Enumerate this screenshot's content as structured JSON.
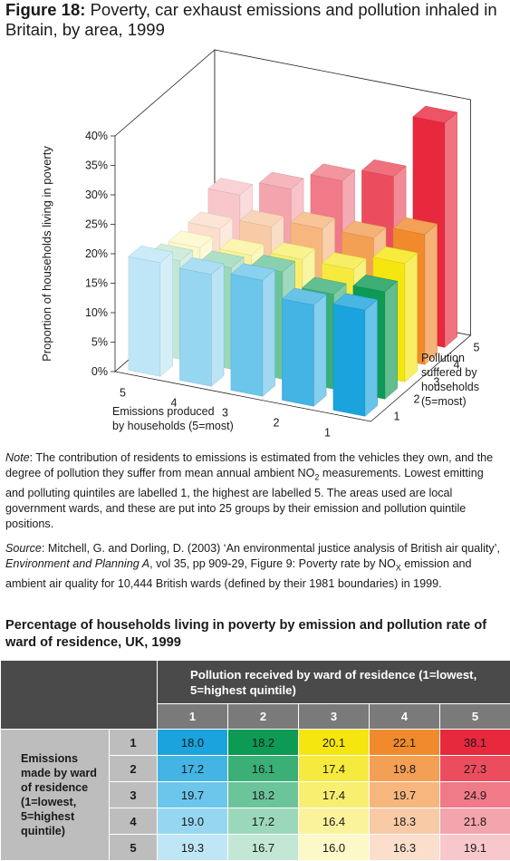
{
  "figure": {
    "label": "Figure 18:",
    "title": "Poverty, car exhaust emissions and pollution inhaled in Britain, by area, 1999"
  },
  "chart_data": {
    "type": "bar",
    "title": "Poverty, car exhaust emissions and pollution inhaled in Britain, by area, 1999",
    "ylabel": "Proportion of households living in poverty",
    "xlabel": "Emissions produced by households (5=most)",
    "zlabel": "Pollution suffered by households (5=most)",
    "ylim": [
      0,
      40
    ],
    "yticks": [
      "0%",
      "5%",
      "10%",
      "15%",
      "20%",
      "25%",
      "30%",
      "35%",
      "40%"
    ],
    "emission_categories": [
      "5",
      "4",
      "3",
      "2",
      "1"
    ],
    "pollution_categories": [
      "1",
      "2",
      "3",
      "4",
      "5"
    ],
    "xlabel_lines": [
      "Emissions produced",
      "by households (5=most)"
    ],
    "zlabel_lines": [
      "Pollution",
      "suffered by",
      "households",
      "(5=most)"
    ],
    "series": [
      {
        "emission": "1",
        "values": [
          18.0,
          18.2,
          20.1,
          22.1,
          38.1
        ]
      },
      {
        "emission": "2",
        "values": [
          17.2,
          16.1,
          17.4,
          19.8,
          27.3
        ]
      },
      {
        "emission": "3",
        "values": [
          19.7,
          18.2,
          17.4,
          19.7,
          24.9
        ]
      },
      {
        "emission": "4",
        "values": [
          19.0,
          17.2,
          16.4,
          18.3,
          21.8
        ]
      },
      {
        "emission": "5",
        "values": [
          19.3,
          16.7,
          16.0,
          16.3,
          19.1
        ]
      }
    ],
    "colors": {
      "1": [
        "#1aa3dd",
        "#0d9a54",
        "#f5e60f",
        "#f08a2c",
        "#e8283d"
      ],
      "2": [
        "#43b4e3",
        "#3aaf76",
        "#f6ea3e",
        "#f39f54",
        "#ec4d5e"
      ],
      "3": [
        "#6cc5ea",
        "#6cc49a",
        "#f8ef70",
        "#f6b67e",
        "#f07a87"
      ],
      "4": [
        "#96d6f0",
        "#9ad8b9",
        "#faf39c",
        "#f8cba6",
        "#f4a4ad"
      ],
      "5": [
        "#bfe6f6",
        "#c3e7d5",
        "#fcf8c7",
        "#fbdfcc",
        "#f8c7cc"
      ]
    }
  },
  "note": {
    "label": "Note",
    "text": ": The contribution of residents to emissions is estimated from the vehicles they own, and the degree of pollution they suffer from mean annual ambient NO",
    "sub": "2",
    "text2": " measurements. Lowest emitting and polluting quintiles are labelled 1, the highest are labelled 5. The areas used are local government wards, and these are put into 25 groups by their emission and pollution quintile positions."
  },
  "source": {
    "label": "Source",
    "p1": ": Mitchell, G. and Dorling, D. (2003) ‘An environmental justice analysis of British air quality’, ",
    "journal": "Environment and Planning A",
    "p2": ", vol 35, pp 909-29, Figure 9: Poverty rate by NO",
    "sub": "X",
    "p3": " emission and ambient air quality for 10,444 British wards (defined by their 1981 boundaries) in 1999."
  },
  "table": {
    "title": "Percentage of households living in poverty by emission and pollution rate of ward of residence, UK, 1999",
    "col_header_line1": "Pollution received by ward of residence (1=lowest,",
    "col_header_line2": "5=highest quintile)",
    "row_header": [
      "Emissions",
      "made by ward",
      "of residence",
      "(1=lowest,",
      "5=highest",
      "quintile)"
    ],
    "columns": [
      "1",
      "2",
      "3",
      "4",
      "5"
    ],
    "rows": [
      {
        "label": "1",
        "values": [
          "18.0",
          "18.2",
          "20.1",
          "22.1",
          "38.1"
        ]
      },
      {
        "label": "2",
        "values": [
          "17.2",
          "16.1",
          "17.4",
          "19.8",
          "27.3"
        ]
      },
      {
        "label": "3",
        "values": [
          "19.7",
          "18.2",
          "17.4",
          "19.7",
          "24.9"
        ]
      },
      {
        "label": "4",
        "values": [
          "19.0",
          "17.2",
          "16.4",
          "18.3",
          "21.8"
        ]
      },
      {
        "label": "5",
        "values": [
          "19.3",
          "16.7",
          "16.0",
          "16.3",
          "19.1"
        ]
      }
    ]
  }
}
